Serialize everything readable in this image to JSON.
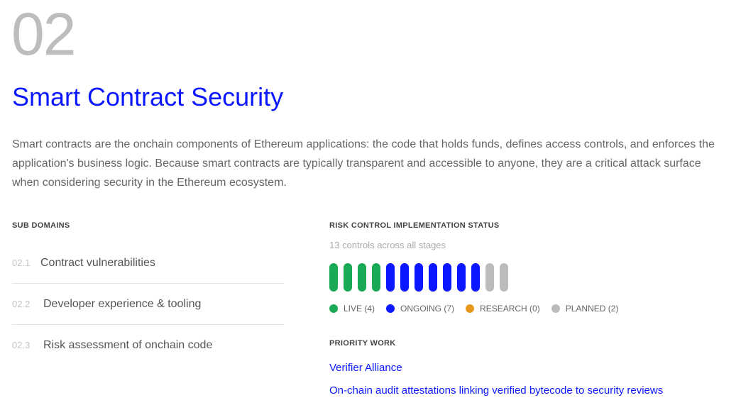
{
  "section_number": "02",
  "title": "Smart Contract Security",
  "description": "Smart contracts are the onchain components of Ethereum applications: the code that holds funds, defines access controls, and enforces the application's business logic. Because smart contracts are typically transparent and accessible to anyone, they are a critical attack surface when considering security in the Ethereum ecosystem.",
  "sub_domains": {
    "heading": "SUB DOMAINS",
    "items": [
      {
        "id": "02.1",
        "label": "Contract vulnerabilities"
      },
      {
        "id": "02.2",
        "label": "Developer experience & tooling"
      },
      {
        "id": "02.3",
        "label": "Risk assessment of onchain code"
      }
    ]
  },
  "status": {
    "heading": "RISK CONTROL IMPLEMENTATION STATUS",
    "caption": "13 controls across all stages",
    "categories": [
      {
        "key": "live",
        "label": "LIVE (4)",
        "count": 4,
        "color": "#1aaa55"
      },
      {
        "key": "ongoing",
        "label": "ONGOING (7)",
        "count": 7,
        "color": "#0a17ff"
      },
      {
        "key": "research",
        "label": "RESEARCH (0)",
        "count": 0,
        "color": "#e8991c"
      },
      {
        "key": "planned",
        "label": "PLANNED (2)",
        "count": 2,
        "color": "#bbbbbb"
      }
    ]
  },
  "priority": {
    "heading": "PRIORITY WORK",
    "items": [
      "Verifier Alliance",
      "On-chain audit attestations linking verified bytecode to security reviews"
    ]
  }
}
